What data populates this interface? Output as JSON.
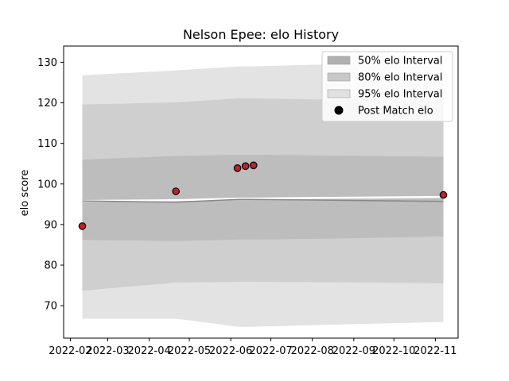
{
  "chart_data": {
    "type": "line",
    "title": "Nelson Epee: elo History",
    "xlabel": "",
    "ylabel": "elo score",
    "xlim": [
      "2022-01-27",
      "2022-11-18"
    ],
    "ylim": [
      62,
      134
    ],
    "x_ticks": [
      "2022-02",
      "2022-03",
      "2022-04",
      "2022-05",
      "2022-06",
      "2022-07",
      "2022-08",
      "2022-09",
      "2022-10",
      "2022-11"
    ],
    "y_ticks": [
      70,
      80,
      90,
      100,
      110,
      120,
      130
    ],
    "grid": false,
    "legend_position": "top-right",
    "legend": [
      {
        "label": "50% elo Interval",
        "kind": "patch",
        "color": "#b0b0b0"
      },
      {
        "label": "80% elo Interval",
        "kind": "patch",
        "color": "#c8c8c8"
      },
      {
        "label": "95% elo Interval",
        "kind": "patch",
        "color": "#e1e1e1"
      },
      {
        "label": "Post Match elo",
        "kind": "marker",
        "color": "#000000"
      }
    ],
    "band_x": [
      "2022-02-10",
      "2022-04-21",
      "2022-06-07",
      "2022-06-15",
      "2022-08-15",
      "2022-11-07"
    ],
    "bands": [
      {
        "name": "95% elo Interval",
        "lower": [
          66.8,
          66.8,
          64.8,
          64.8,
          65.3,
          66.0
        ],
        "upper": [
          126.8,
          128.0,
          129.0,
          129.0,
          129.5,
          130.3
        ],
        "color": "#e3e3e3"
      },
      {
        "name": "80% elo Interval",
        "lower": [
          73.7,
          75.7,
          75.9,
          75.9,
          75.8,
          75.5
        ],
        "upper": [
          119.6,
          120.1,
          121.1,
          121.1,
          120.8,
          120.6
        ],
        "color": "#cfcfcf"
      },
      {
        "name": "50% elo Interval",
        "lower": [
          86.2,
          85.9,
          86.3,
          86.3,
          86.5,
          87.1
        ],
        "upper": [
          106.0,
          106.9,
          107.2,
          107.2,
          107.0,
          106.7
        ],
        "color": "#bdbdbd"
      }
    ],
    "mean_line": {
      "values": [
        95.8,
        95.5,
        96.2,
        96.2,
        96.0,
        95.7
      ],
      "color": "#888888"
    },
    "upper_line": {
      "values": [
        95.8,
        96.0,
        96.4,
        96.4,
        96.6,
        96.8
      ],
      "color": "#ffffff"
    },
    "series": [
      {
        "name": "Post Match elo",
        "kind": "scatter",
        "color": "#c0202a",
        "edgecolor": "#000000",
        "x": [
          "2022-02-10",
          "2022-04-21",
          "2022-06-06",
          "2022-06-12",
          "2022-06-18",
          "2022-11-07"
        ],
        "y": [
          89.6,
          98.2,
          103.9,
          104.4,
          104.6,
          97.3
        ]
      }
    ]
  }
}
